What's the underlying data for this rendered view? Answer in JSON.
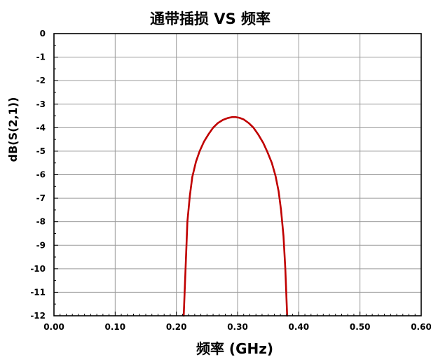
{
  "chart_data": {
    "type": "line",
    "title": "通带插损 VS 频率",
    "xlabel": "频率 (GHz)",
    "ylabel": "dB(S(2,1))",
    "xlim": [
      0.0,
      0.6
    ],
    "ylim": [
      -12,
      0
    ],
    "x_ticks": [
      0.0,
      0.1,
      0.2,
      0.3,
      0.4,
      0.5,
      0.6
    ],
    "x_tick_labels": [
      "0.00",
      "0.10",
      "0.20",
      "0.30",
      "0.40",
      "0.50",
      "0.60"
    ],
    "y_ticks": [
      0,
      -1,
      -2,
      -3,
      -4,
      -5,
      -6,
      -7,
      -8,
      -9,
      -10,
      -11,
      -12
    ],
    "y_tick_labels": [
      "0",
      "-1",
      "-2",
      "-3",
      "-4",
      "-5",
      "-6",
      "-7",
      "-8",
      "-9",
      "-10",
      "-11",
      "-12"
    ],
    "grid": true,
    "legend": "none",
    "series": [
      {
        "color": "#c00000",
        "x": [
          0.212,
          0.215,
          0.218,
          0.222,
          0.226,
          0.232,
          0.238,
          0.245,
          0.252,
          0.26,
          0.268,
          0.276,
          0.284,
          0.291,
          0.297,
          0.303,
          0.31,
          0.318,
          0.326,
          0.334,
          0.342,
          0.349,
          0.356,
          0.362,
          0.367,
          0.371,
          0.375,
          0.378,
          0.381
        ],
        "y": [
          -12.0,
          -10.0,
          -8.0,
          -6.9,
          -6.1,
          -5.45,
          -5.0,
          -4.6,
          -4.3,
          -4.0,
          -3.8,
          -3.67,
          -3.59,
          -3.55,
          -3.55,
          -3.58,
          -3.65,
          -3.8,
          -4.0,
          -4.3,
          -4.65,
          -5.05,
          -5.5,
          -6.05,
          -6.7,
          -7.5,
          -8.6,
          -10.0,
          -12.0
        ]
      }
    ]
  }
}
